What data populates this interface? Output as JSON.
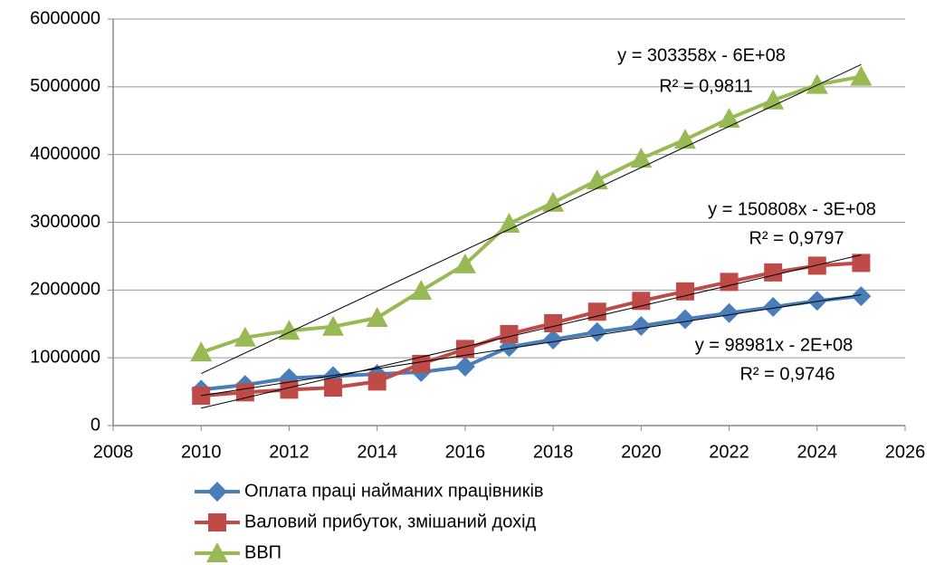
{
  "chart_data": {
    "type": "line",
    "x": [
      2010,
      2011,
      2012,
      2013,
      2014,
      2015,
      2016,
      2017,
      2018,
      2019,
      2020,
      2021,
      2022,
      2023,
      2024,
      2025
    ],
    "series": [
      {
        "name": "Оплата праці найманих працівників",
        "color": "#4a7ebb",
        "marker": "diamond",
        "values": [
          530000,
          600000,
          700000,
          730000,
          760000,
          790000,
          870000,
          1160000,
          1270000,
          1380000,
          1470000,
          1570000,
          1660000,
          1750000,
          1840000,
          1910000
        ],
        "trendline": {
          "equation": "y = 98981x - 2E+08",
          "r2": "R² = 0,9746"
        }
      },
      {
        "name": "Валовий прибуток, змішаний дохід",
        "color": "#be4b48",
        "marker": "square",
        "values": [
          440000,
          490000,
          530000,
          560000,
          650000,
          910000,
          1130000,
          1350000,
          1510000,
          1680000,
          1840000,
          1980000,
          2120000,
          2260000,
          2360000,
          2400000
        ],
        "trendline": {
          "equation": "y = 150808x - 3E+08",
          "r2": "R² = 0,9797"
        }
      },
      {
        "name": "ВВП",
        "color": "#98b954",
        "marker": "triangle",
        "values": [
          1080000,
          1300000,
          1400000,
          1460000,
          1590000,
          1990000,
          2380000,
          2980000,
          3290000,
          3620000,
          3940000,
          4220000,
          4530000,
          4800000,
          5030000,
          5150000
        ],
        "trendline": {
          "equation": "y = 303358x - 6E+08",
          "r2": "R² = 0,9811"
        }
      }
    ],
    "xlim": [
      2008,
      2026
    ],
    "xticks": [
      2008,
      2010,
      2012,
      2014,
      2016,
      2018,
      2020,
      2022,
      2024,
      2026
    ],
    "ylim": [
      0,
      6000000
    ],
    "yticks": [
      0,
      1000000,
      2000000,
      3000000,
      4000000,
      5000000,
      6000000
    ],
    "grid": true,
    "legend": "bottom"
  }
}
